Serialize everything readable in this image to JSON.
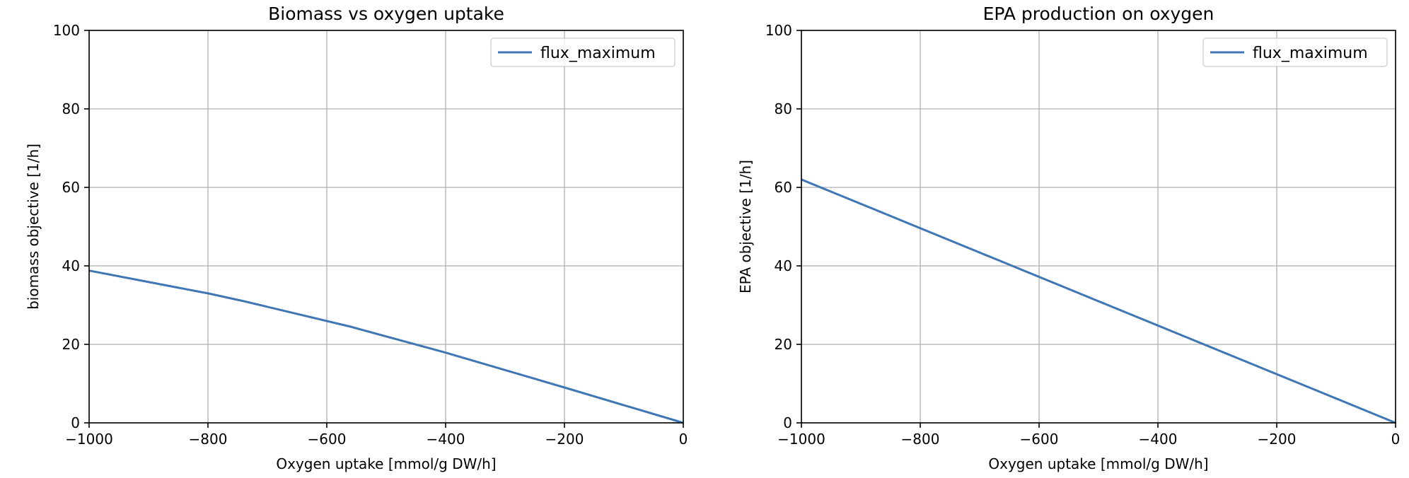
{
  "figure": {
    "background": "#ffffff",
    "line_color": "#3f76b4"
  },
  "chart_data": [
    {
      "type": "line",
      "title": "Biomass vs oxygen uptake",
      "xlabel": "Oxygen uptake [mmol/g DW/h]",
      "ylabel": "biomass objective [1/h]",
      "xlim": [
        -1000,
        0
      ],
      "ylim": [
        0,
        100
      ],
      "xticks": [
        -1000,
        -800,
        -600,
        -400,
        -200,
        0
      ],
      "xtick_labels": [
        "−1000",
        "−800",
        "−600",
        "−400",
        "−200",
        "0"
      ],
      "yticks": [
        0,
        20,
        40,
        60,
        80,
        100
      ],
      "ytick_labels": [
        "0",
        "20",
        "40",
        "60",
        "80",
        "100"
      ],
      "grid": true,
      "legend_position": "top-right",
      "series": [
        {
          "name": "flux_maximum",
          "color": "#3f76b4",
          "x": [
            -1000,
            -800,
            -740,
            -560,
            -400,
            -200,
            0
          ],
          "y": [
            38.8,
            33.0,
            31.0,
            24.5,
            17.9,
            9.0,
            0.0
          ]
        }
      ]
    },
    {
      "type": "line",
      "title": "EPA production on oxygen",
      "xlabel": "Oxygen uptake [mmol/g DW/h]",
      "ylabel": "EPA objective [1/h]",
      "xlim": [
        -1000,
        0
      ],
      "ylim": [
        0,
        100
      ],
      "xticks": [
        -1000,
        -800,
        -600,
        -400,
        -200,
        0
      ],
      "xtick_labels": [
        "−1000",
        "−800",
        "−600",
        "−400",
        "−200",
        "0"
      ],
      "yticks": [
        0,
        20,
        40,
        60,
        80,
        100
      ],
      "ytick_labels": [
        "0",
        "20",
        "40",
        "60",
        "80",
        "100"
      ],
      "grid": true,
      "legend_position": "top-right",
      "series": [
        {
          "name": "flux_maximum",
          "color": "#3f76b4",
          "x": [
            -1000,
            0
          ],
          "y": [
            62.0,
            0.0
          ]
        }
      ]
    }
  ]
}
